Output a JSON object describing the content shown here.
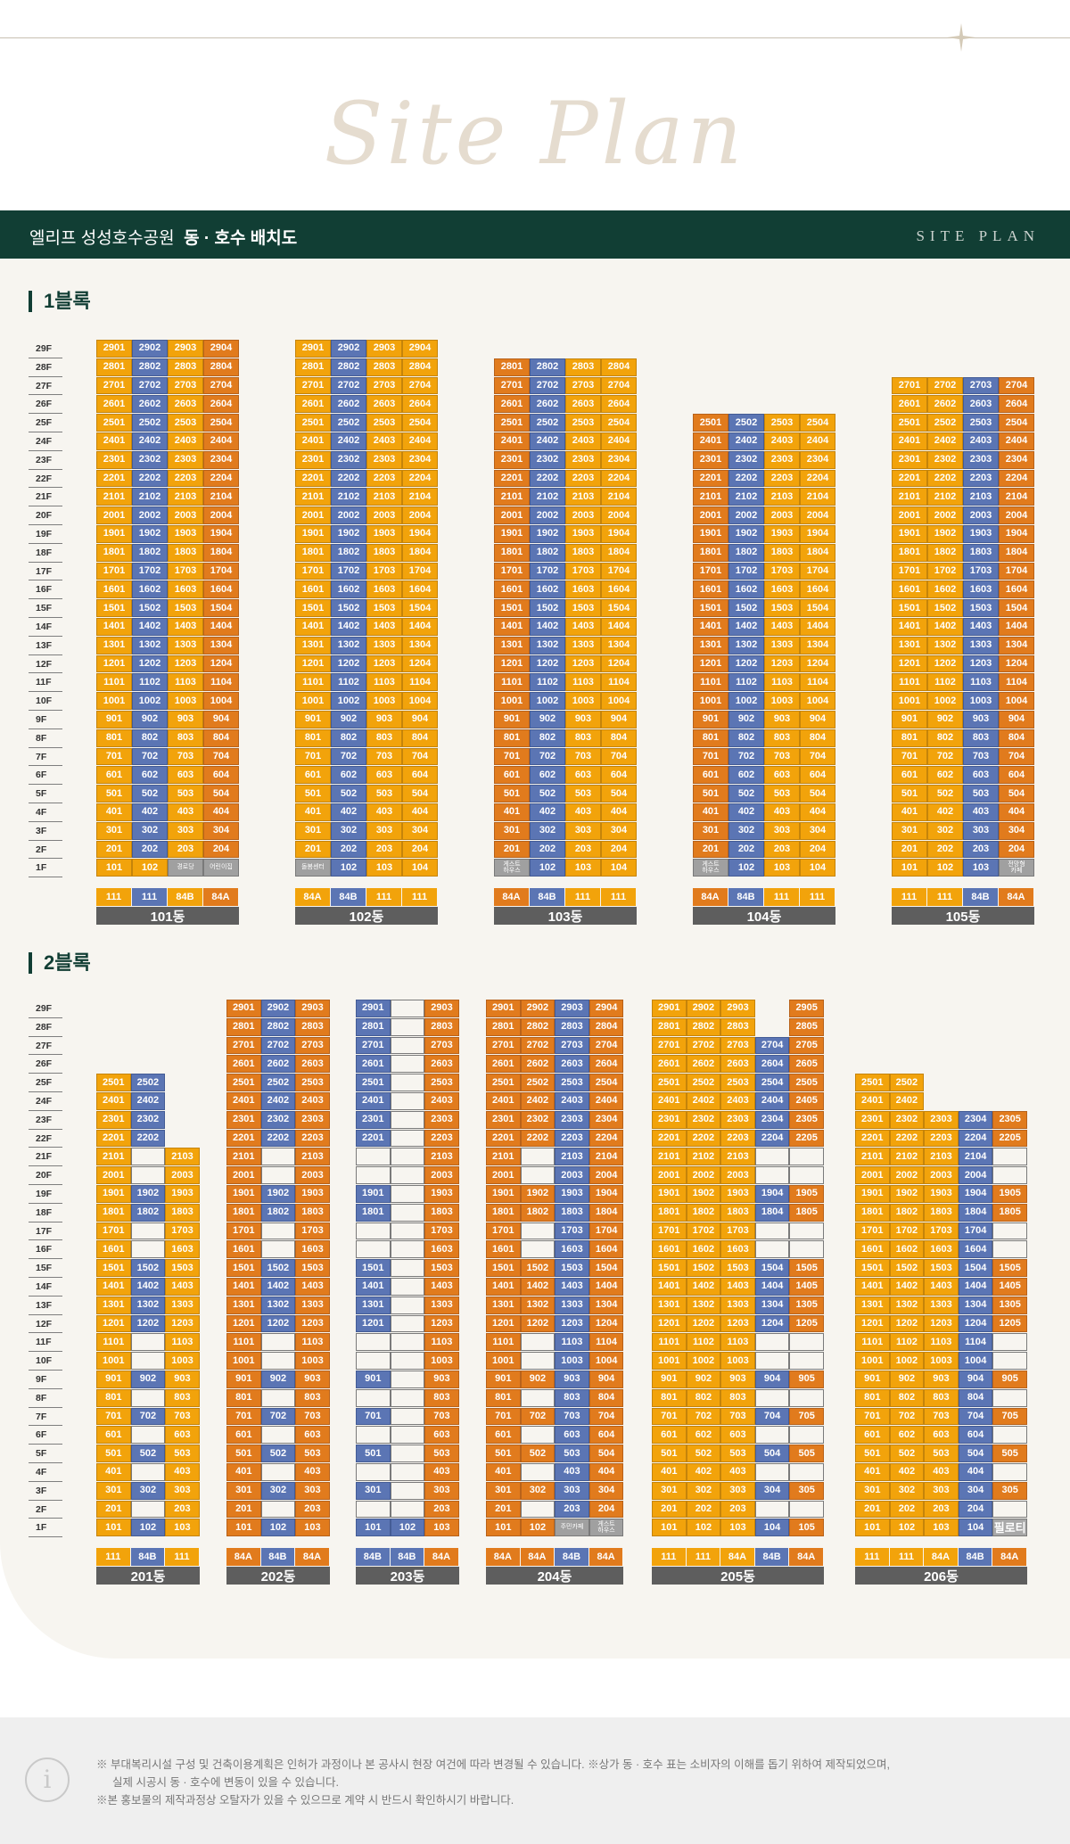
{
  "header": {
    "script_title": "Site Plan",
    "complex_name": "엘리프 성성호수공원",
    "plan_title": "동 · 호수 배치도",
    "english_title": "SITE PLAN"
  },
  "colors": {
    "orange": "#f2a30b",
    "dark_orange": "#e17b1d",
    "blue": "#5b75b4",
    "gray": "#a0a0a0",
    "green": "#113e34"
  },
  "block1": {
    "title": "1블록",
    "floor_labels": [
      "29F",
      "28F",
      "27F",
      "26F",
      "25F",
      "24F",
      "23F",
      "22F",
      "21F",
      "20F",
      "19F",
      "18F",
      "17F",
      "16F",
      "15F",
      "14F",
      "13F",
      "12F",
      "11F",
      "10F",
      "9F",
      "8F",
      "7F",
      "6F",
      "5F",
      "4F",
      "3F",
      "2F",
      "1F"
    ],
    "buildings": [
      {
        "name": "101동",
        "top": 29,
        "types": [
          "111",
          "111",
          "84B",
          "84A"
        ],
        "colors": "obor",
        "first_floor": [
          [
            "101",
            "o"
          ],
          [
            "102",
            "o"
          ],
          [
            "경로당",
            "g"
          ],
          [
            "어린이집",
            "g"
          ]
        ]
      },
      {
        "name": "102동",
        "top": 29,
        "types": [
          "84A",
          "84B",
          "111",
          "111"
        ],
        "colors": "oboo",
        "first_floor": [
          [
            "돌봄센터",
            "g"
          ],
          [
            "102",
            "b"
          ],
          [
            "103",
            "o"
          ],
          [
            "104",
            "o"
          ]
        ]
      },
      {
        "name": "103동",
        "top": 28,
        "types": [
          "84A",
          "84B",
          "111",
          "111"
        ],
        "colors": "rboo",
        "first_floor": [
          [
            "게스트\n하우스",
            "g"
          ],
          [
            "102",
            "b"
          ],
          [
            "103",
            "o"
          ],
          [
            "104",
            "o"
          ]
        ]
      },
      {
        "name": "104동",
        "top": 25,
        "types": [
          "84A",
          "84B",
          "111",
          "111"
        ],
        "colors": "rboo",
        "first_floor": [
          [
            "게스트\n하우스",
            "g"
          ],
          [
            "102",
            "b"
          ],
          [
            "103",
            "o"
          ],
          [
            "104",
            "o"
          ]
        ]
      },
      {
        "name": "105동",
        "top": 27,
        "types": [
          "111",
          "111",
          "84B",
          "84A"
        ],
        "colors": "oobr",
        "first_floor": [
          [
            "101",
            "o"
          ],
          [
            "102",
            "o"
          ],
          [
            "103",
            "b"
          ],
          [
            "전망형\n카페",
            "g"
          ]
        ]
      }
    ]
  },
  "block2": {
    "title": "2블록",
    "floor_labels": [
      "29F",
      "28F",
      "27F",
      "26F",
      "25F",
      "24F",
      "23F",
      "22F",
      "21F",
      "20F",
      "19F",
      "18F",
      "17F",
      "16F",
      "15F",
      "14F",
      "13F",
      "12F",
      "11F",
      "10F",
      "9F",
      "8F",
      "7F",
      "6F",
      "5F",
      "4F",
      "3F",
      "2F",
      "1F"
    ],
    "buildings": [
      {
        "name": "201동",
        "types": [
          "111",
          "84B",
          "111"
        ],
        "colors": "obo",
        "tops": [
          25,
          25,
          21
        ],
        "pattern": [
          [
            "odd",
            "all"
          ],
          [
            "even",
            "none"
          ],
          [
            "odd",
            "all"
          ]
        ],
        "first_floor": [
          [
            "101",
            "o"
          ],
          [
            "102",
            "b"
          ],
          [
            "103",
            "o"
          ]
        ],
        "extra": {
          "1": [
            19,
            18,
            15,
            14,
            13,
            12,
            9,
            7,
            5,
            3
          ]
        }
      },
      {
        "name": "202동",
        "types": [
          "84A",
          "84B",
          "84A"
        ],
        "colors": "rbr",
        "tops": [
          29,
          29,
          29
        ],
        "first_floor": [
          [
            "101",
            "r"
          ],
          [
            "102",
            "b"
          ],
          [
            "103",
            "r"
          ]
        ],
        "extra": {
          "1": [
            29,
            28,
            27,
            26,
            25,
            24,
            23,
            22,
            19,
            18,
            15,
            14,
            13,
            12,
            9,
            7,
            5,
            3
          ]
        }
      },
      {
        "name": "203동",
        "types": [
          "84B",
          "84B",
          "84A"
        ],
        "colors": "bbr",
        "tops": [
          29,
          29,
          29
        ],
        "first_floor": [
          [
            "101",
            "b"
          ],
          [
            "102",
            "b"
          ],
          [
            "103",
            "r"
          ]
        ],
        "extra": {
          "0": [
            29,
            28,
            27,
            26,
            25,
            24,
            23,
            22,
            19,
            18,
            15,
            14,
            13,
            12,
            9,
            7,
            5,
            3
          ],
          "1": []
        }
      },
      {
        "name": "204동",
        "types": [
          "84A",
          "84A",
          "84B",
          "84A"
        ],
        "colors": "rrbr",
        "tops": [
          29,
          29,
          29,
          29
        ],
        "first_floor": [
          [
            "101",
            "r"
          ],
          [
            "102",
            "r"
          ],
          [
            "주민카페",
            "g"
          ],
          [
            "게스트\n하우스",
            "g"
          ]
        ],
        "extra": {
          "1": [
            29,
            28,
            27,
            26,
            25,
            24,
            23,
            22,
            19,
            18,
            15,
            14,
            13,
            12,
            9,
            7,
            5,
            3
          ]
        }
      },
      {
        "name": "205동",
        "types": [
          "111",
          "111",
          "84A",
          "84B",
          "84A"
        ],
        "colors": "ooobr",
        "tops": [
          29,
          29,
          29,
          27,
          29
        ],
        "first_floor": [
          [
            "101",
            "o"
          ],
          [
            "102",
            "o"
          ],
          [
            "103",
            "o"
          ],
          [
            "104",
            "b"
          ],
          [
            "105",
            "r"
          ]
        ],
        "extra": {
          "3": [
            27,
            26,
            25,
            24,
            23,
            22,
            21,
            20,
            19,
            18,
            17,
            16,
            15,
            14,
            13,
            12,
            11,
            10,
            9,
            8,
            7,
            6,
            5,
            4,
            3,
            2,
            1
          ],
          "4": [
            29,
            28,
            27,
            26,
            25,
            24,
            23,
            22,
            19,
            18,
            15,
            14,
            13,
            12,
            9,
            7,
            5,
            3,
            1
          ]
        }
      },
      {
        "name": "206동",
        "types": [
          "111",
          "111",
          "84A",
          "84B",
          "84A"
        ],
        "colors": "ooobr",
        "tops": [
          25,
          25,
          23,
          23,
          23
        ],
        "first_floor": [
          [
            "101",
            "o"
          ],
          [
            "102",
            "o"
          ],
          [
            "103",
            "o"
          ],
          [
            "104",
            "b"
          ],
          [
            "필로티",
            "p"
          ]
        ],
        "extra": {
          "4": [
            23,
            22,
            19,
            18,
            15,
            14,
            13,
            12,
            9,
            7,
            5,
            3
          ]
        }
      }
    ]
  },
  "notes": {
    "line1": "※ 부대복리시설 구성 및 건축이용계획은 인허가 과정이나 본 공사시 현장 여건에 따라 변경될 수 있습니다. ※상가 동 · 호수 표는 소비자의 이해를 돕기 위하여 제작되었으며,",
    "line2": "실제 시공시 동 · 호수에 변동이 있을 수 있습니다.",
    "line3": "※본 홍보물의 제작과정상 오탈자가 있을 수 있으므로 계약 시 반드시 확인하시기 바랍니다."
  }
}
